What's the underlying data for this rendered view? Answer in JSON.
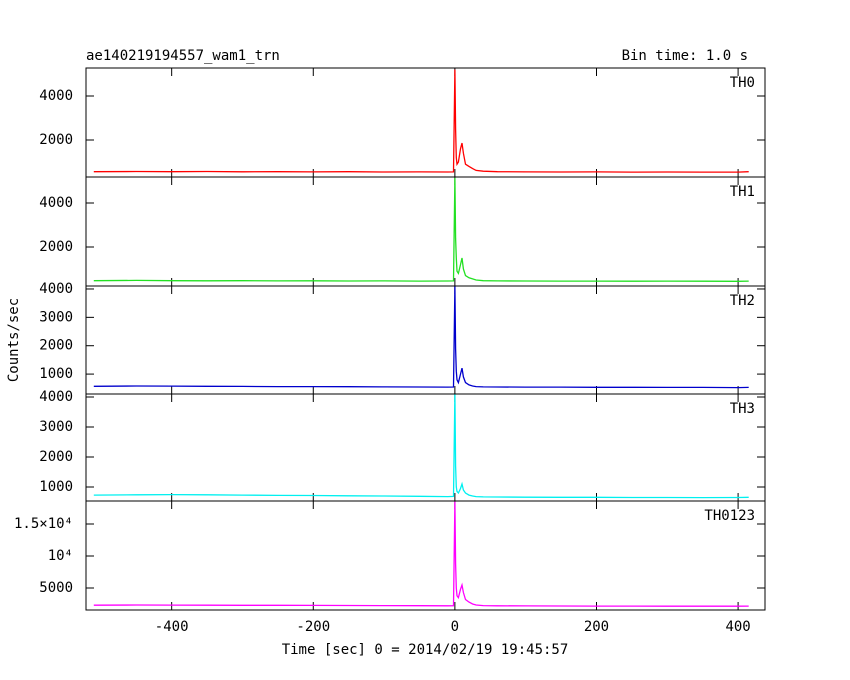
{
  "figure": {
    "title": "ae140219194557_wam1_trn",
    "subtitle": "Bin time: 1.0 s",
    "xlabel": "Time [sec] 0 = 2014/02/19 19:45:57",
    "ylabel": "Counts/sec"
  },
  "chart_data": [
    {
      "type": "line",
      "xlim": [
        -521,
        438
      ],
      "xticks": [
        -400,
        -200,
        0,
        200,
        400
      ],
      "ylim": [
        318,
        5273
      ],
      "yticks": [
        2000,
        4000
      ],
      "x": [
        -510,
        -450,
        -400,
        -350,
        -300,
        -250,
        -200,
        -150,
        -100,
        -50,
        -10,
        -2,
        0,
        1,
        2,
        3,
        5,
        8,
        10,
        12,
        15,
        20,
        25,
        30,
        40,
        60,
        100,
        150,
        200,
        250,
        300,
        350,
        400,
        415
      ],
      "series": [
        {
          "name": "TH0",
          "color": "#ff0000",
          "values": [
            560,
            570,
            560,
            570,
            555,
            560,
            550,
            560,
            545,
            550,
            545,
            550,
            5200,
            2500,
            1200,
            900,
            1000,
            1600,
            1860,
            1400,
            900,
            800,
            700,
            620,
            580,
            560,
            550,
            545,
            550,
            540,
            545,
            540,
            540,
            560
          ]
        }
      ]
    },
    {
      "type": "line",
      "xlim": [
        -521,
        438
      ],
      "xticks": [
        -400,
        -200,
        0,
        200,
        400
      ],
      "ylim": [
        227,
        5182
      ],
      "yticks": [
        2000,
        4000
      ],
      "x": [
        -510,
        -450,
        -400,
        -350,
        -300,
        -250,
        -200,
        -150,
        -100,
        -50,
        -10,
        -2,
        0,
        1,
        2,
        3,
        5,
        8,
        10,
        12,
        15,
        20,
        25,
        30,
        40,
        60,
        100,
        150,
        200,
        250,
        300,
        350,
        400,
        415
      ],
      "series": [
        {
          "name": "TH1",
          "color": "#22e022",
          "values": [
            470,
            480,
            470,
            465,
            470,
            460,
            465,
            455,
            460,
            450,
            455,
            460,
            5150,
            2400,
            1500,
            900,
            800,
            1200,
            1500,
            1000,
            700,
            600,
            550,
            500,
            470,
            460,
            455,
            450,
            450,
            445,
            450,
            445,
            440,
            450
          ]
        }
      ]
    },
    {
      "type": "line",
      "xlim": [
        -521,
        438
      ],
      "xticks": [
        -400,
        -200,
        0,
        200,
        400
      ],
      "ylim": [
        298,
        4105
      ],
      "yticks": [
        1000,
        2000,
        3000,
        4000
      ],
      "x": [
        -510,
        -450,
        -400,
        -350,
        -300,
        -250,
        -200,
        -150,
        -100,
        -50,
        -10,
        -2,
        0,
        1,
        2,
        3,
        5,
        8,
        10,
        12,
        15,
        20,
        25,
        30,
        40,
        60,
        100,
        150,
        200,
        250,
        300,
        350,
        400,
        415
      ],
      "series": [
        {
          "name": "TH2",
          "color": "#0000cc",
          "values": [
            570,
            580,
            575,
            570,
            565,
            560,
            560,
            555,
            550,
            545,
            540,
            545,
            4100,
            1900,
            1100,
            800,
            700,
            1000,
            1210,
            900,
            700,
            620,
            580,
            560,
            550,
            545,
            540,
            540,
            535,
            535,
            530,
            530,
            525,
            530
          ]
        }
      ]
    },
    {
      "type": "line",
      "xlim": [
        -521,
        438
      ],
      "xticks": [
        -400,
        -200,
        0,
        200,
        400
      ],
      "ylim": [
        533,
        4100
      ],
      "yticks": [
        1000,
        2000,
        3000,
        4000
      ],
      "x": [
        -510,
        -450,
        -400,
        -350,
        -300,
        -250,
        -200,
        -150,
        -100,
        -50,
        -10,
        -2,
        0,
        1,
        2,
        3,
        5,
        8,
        10,
        12,
        15,
        20,
        25,
        30,
        40,
        60,
        100,
        150,
        200,
        250,
        300,
        350,
        400,
        415
      ],
      "series": [
        {
          "name": "TH3",
          "color": "#00f0f0",
          "values": [
            730,
            740,
            745,
            740,
            730,
            720,
            715,
            705,
            700,
            690,
            680,
            685,
            4100,
            1700,
            1000,
            850,
            800,
            950,
            1100,
            900,
            800,
            730,
            700,
            680,
            670,
            665,
            660,
            655,
            655,
            650,
            650,
            645,
            650,
            655
          ]
        }
      ]
    },
    {
      "type": "line",
      "xlim": [
        -521,
        438
      ],
      "xticks": [
        -400,
        -200,
        0,
        200,
        400
      ],
      "ylim": [
        1563,
        18594
      ],
      "yticks": [
        5000,
        {
          "value": 10000,
          "label": "10⁴"
        },
        {
          "value": 15000,
          "label": "1.5×10⁴"
        }
      ],
      "x": [
        -510,
        -450,
        -400,
        -350,
        -300,
        -250,
        -200,
        -150,
        -100,
        -50,
        -10,
        -2,
        0,
        1,
        2,
        3,
        5,
        8,
        10,
        12,
        15,
        20,
        25,
        30,
        40,
        60,
        100,
        150,
        200,
        250,
        300,
        350,
        400,
        415
      ],
      "series": [
        {
          "name": "TH0123",
          "color": "#ff00ff",
          "values": [
            2320,
            2340,
            2330,
            2320,
            2300,
            2290,
            2280,
            2260,
            2250,
            2230,
            2220,
            2230,
            18500,
            8800,
            5000,
            3800,
            3500,
            4800,
            5470,
            4300,
            3200,
            2800,
            2500,
            2350,
            2250,
            2220,
            2200,
            2190,
            2180,
            2170,
            2160,
            2160,
            2150,
            2170
          ]
        }
      ]
    }
  ]
}
